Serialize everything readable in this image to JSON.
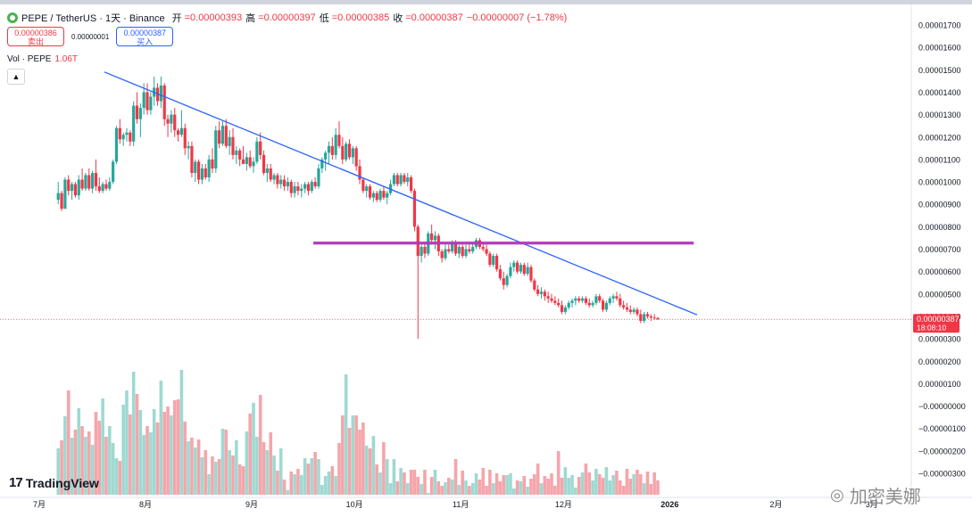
{
  "header": {
    "symbol_title": "PEPE / TetherUS · 1天 · Binance",
    "open_label": "开",
    "open_value": "=0.00000393",
    "high_label": "高",
    "high_value": "=0.00000397",
    "low_label": "低",
    "low_value": "=0.00000385",
    "close_label": "收",
    "close_value": "=0.00000387",
    "change": "−0.00000007 (−1.78%)"
  },
  "trade": {
    "sell_price": "0.00000386",
    "sell_label": "卖出",
    "spread": "0.00000001",
    "buy_price": "0.00000387",
    "buy_label": "买入"
  },
  "volume_legend": {
    "label": "Vol · PEPE",
    "value": "1.06T"
  },
  "collapse_icon": "chevron-up-icon",
  "branding": {
    "name": "TradingView",
    "icon": "tradingview-logo-icon"
  },
  "watermark": {
    "text": "加密美娜",
    "icon": "wechat-icon"
  },
  "chart_data": {
    "type": "candlestick",
    "title": "PEPE / TetherUS · 1天 · Binance",
    "x_tick_labels": [
      "7月",
      "8月",
      "9月",
      "10月",
      "11月",
      "12月",
      "2026",
      "2月",
      "3月"
    ],
    "x_tick_dates": [
      "2025-07-01",
      "2025-08-01",
      "2025-09-01",
      "2025-10-01",
      "2025-11-01",
      "2025-12-01",
      "2026-01-01",
      "2026-02-01",
      "2026-03-01"
    ],
    "y_tick_labels": [
      "0.00001700",
      "0.00001600",
      "0.00001500",
      "0.00001400",
      "0.00001300",
      "0.00001200",
      "0.00001100",
      "0.00001000",
      "0.00000900",
      "0.00000800",
      "0.00000700",
      "0.00000600",
      "0.00000500",
      "0.00000400",
      "0.00000300",
      "0.00000200",
      "0.00000100",
      "−0.00000000",
      "−0.00000100",
      "−0.00000200",
      "−0.00000300"
    ],
    "price_ylim": [
      3e-06,
      1.7e-05
    ],
    "last_price": {
      "value": "0.00000387",
      "countdown": "18:08:10",
      "color": "#f23645"
    },
    "colors": {
      "up": "#26a69a",
      "down": "#f23645",
      "trendline": "#2962ff",
      "resistance": "#9c27b0"
    },
    "trendline": {
      "start": {
        "date": "2025-07-20",
        "price": 1.49e-05
      },
      "end": {
        "date": "2026-01-09",
        "price": 4.07e-06
      }
    },
    "resistance_band": {
      "start_date": "2025-09-19",
      "end_date": "2026-01-08",
      "price": 7.27e-06
    },
    "candles_ohlc": [
      [
        9.2e-06,
        1e-05,
        9e-06,
        9.5e-06
      ],
      [
        9.5e-06,
        9.6e-06,
        8.7e-06,
        8.8e-06
      ],
      [
        8.8e-06,
        1.02e-05,
        8.8e-06,
        1.01e-05
      ],
      [
        1.01e-05,
        1.03e-05,
        9.4e-06,
        9.6e-06
      ],
      [
        9.6e-06,
        1e-05,
        9.2e-06,
        9.9e-06
      ],
      [
        9.9e-06,
        1e-05,
        9.3e-06,
        9.4e-06
      ],
      [
        9.4e-06,
        1.03e-05,
        9.2e-06,
        1.01e-05
      ],
      [
        1.01e-05,
        1.06e-05,
        9.6e-06,
        9.7e-06
      ],
      [
        9.7e-06,
        1.04e-05,
        9.6e-06,
        1.03e-05
      ],
      [
        1.03e-05,
        1.06e-05,
        9.6e-06,
        9.7e-06
      ],
      [
        9.7e-06,
        1.05e-05,
        9.5e-06,
        1.04e-05
      ],
      [
        1.04e-05,
        1.1e-05,
        9.6e-06,
        9.8e-06
      ],
      [
        9.8e-06,
        1.02e-05,
        9.5e-06,
        9.6e-06
      ],
      [
        9.6e-06,
        1e-05,
        9.5e-06,
        9.9e-06
      ],
      [
        9.9e-06,
        1.01e-05,
        9.6e-06,
        9.7e-06
      ],
      [
        9.7e-06,
        1.02e-05,
        9.6e-06,
        1e-05
      ],
      [
        1e-05,
        1.1e-05,
        9.9e-06,
        1.09e-05
      ],
      [
        1.09e-05,
        1.25e-05,
        1.08e-05,
        1.24e-05
      ],
      [
        1.24e-05,
        1.28e-05,
        1.17e-05,
        1.19e-05
      ],
      [
        1.19e-05,
        1.22e-05,
        1.16e-05,
        1.21e-05
      ],
      [
        1.21e-05,
        1.24e-05,
        1.18e-05,
        1.22e-05
      ],
      [
        1.22e-05,
        1.23e-05,
        1.16e-05,
        1.18e-05
      ],
      [
        1.18e-05,
        1.36e-05,
        1.16e-05,
        1.34e-05
      ],
      [
        1.34e-05,
        1.4e-05,
        1.26e-05,
        1.28e-05
      ],
      [
        1.28e-05,
        1.35e-05,
        1.2e-05,
        1.33e-05
      ],
      [
        1.33e-05,
        1.44e-05,
        1.3e-05,
        1.4e-05
      ],
      [
        1.4e-05,
        1.44e-05,
        1.3e-05,
        1.32e-05
      ],
      [
        1.32e-05,
        1.4e-05,
        1.3e-05,
        1.38e-05
      ],
      [
        1.38e-05,
        1.47e-05,
        1.34e-05,
        1.42e-05
      ],
      [
        1.42e-05,
        1.44e-05,
        1.34e-05,
        1.36e-05
      ],
      [
        1.36e-05,
        1.47e-05,
        1.33e-05,
        1.43e-05
      ],
      [
        1.43e-05,
        1.44e-05,
        1.25e-05,
        1.28e-05
      ],
      [
        1.28e-05,
        1.3e-05,
        1.2e-05,
        1.26e-05
      ],
      [
        1.26e-05,
        1.32e-05,
        1.22e-05,
        1.3e-05
      ],
      [
        1.3e-05,
        1.33e-05,
        1.2e-05,
        1.23e-05
      ],
      [
        1.23e-05,
        1.24e-05,
        1.18e-05,
        1.21e-05
      ],
      [
        1.21e-05,
        1.32e-05,
        1.2e-05,
        1.24e-05
      ],
      [
        1.24e-05,
        1.26e-05,
        1.12e-05,
        1.15e-05
      ],
      [
        1.15e-05,
        1.18e-05,
        1.1e-05,
        1.16e-05
      ],
      [
        1.16e-05,
        1.18e-05,
        1.02e-05,
        1.04e-05
      ],
      [
        1.04e-05,
        1.1e-05,
        1e-05,
        1.09e-05
      ],
      [
        1.09e-05,
        1.1e-05,
        9.9e-06,
        1.01e-05
      ],
      [
        1.01e-05,
        1.08e-05,
        9.9e-06,
        1.06e-05
      ],
      [
        1.06e-05,
        1.08e-05,
        1.01e-05,
        1.02e-05
      ],
      [
        1.02e-05,
        1.12e-05,
        1e-05,
        1.1e-05
      ],
      [
        1.1e-05,
        1.15e-05,
        1.04e-05,
        1.06e-05
      ],
      [
        1.06e-05,
        1.25e-05,
        1.04e-05,
        1.23e-05
      ],
      [
        1.23e-05,
        1.27e-05,
        1.15e-05,
        1.17e-05
      ],
      [
        1.17e-05,
        1.27e-05,
        1.16e-05,
        1.25e-05
      ],
      [
        1.25e-05,
        1.28e-05,
        1.15e-05,
        1.16e-05
      ],
      [
        1.16e-05,
        1.23e-05,
        1.12e-05,
        1.2e-05
      ],
      [
        1.2e-05,
        1.24e-05,
        1.1e-05,
        1.12e-05
      ],
      [
        1.12e-05,
        1.16e-05,
        1.08e-05,
        1.14e-05
      ],
      [
        1.14e-05,
        1.15e-05,
        1.07e-05,
        1.1e-05
      ],
      [
        1.1e-05,
        1.16e-05,
        1.08e-05,
        1.08e-05
      ],
      [
        1.08e-05,
        1.13e-05,
        1.05e-05,
        1.11e-05
      ],
      [
        1.11e-05,
        1.14e-05,
        1.06e-05,
        1.07e-05
      ],
      [
        1.07e-05,
        1.11e-05,
        1.04e-05,
        1.09e-05
      ],
      [
        1.09e-05,
        1.2e-05,
        1.08e-05,
        1.18e-05
      ],
      [
        1.18e-05,
        1.22e-05,
        1.1e-05,
        1.12e-05
      ],
      [
        1.12e-05,
        1.14e-05,
        1.03e-05,
        1.04e-05
      ],
      [
        1.04e-05,
        1.08e-05,
        1e-05,
        1.06e-05
      ],
      [
        1.06e-05,
        1.08e-05,
        1e-05,
        1.01e-05
      ],
      [
        1.01e-05,
        1.04e-05,
        9.9e-06,
        1.03e-05
      ],
      [
        1.03e-05,
        1.04e-05,
        9.7e-06,
        9.9e-06
      ],
      [
        9.9e-06,
        1.03e-05,
        9.7e-06,
        1.01e-05
      ],
      [
        1.01e-05,
        1.03e-05,
        9.6e-06,
        9.8e-06
      ],
      [
        9.8e-06,
        1.02e-05,
        9.6e-06,
        1e-05
      ],
      [
        1e-05,
        1.01e-05,
        9.3e-06,
        9.5e-06
      ],
      [
        9.5e-06,
        1e-05,
        9.3e-06,
        9.8e-06
      ],
      [
        9.8e-06,
        1e-05,
        9.4e-06,
        9.6e-06
      ],
      [
        9.6e-06,
        9.9e-06,
        9.3e-06,
        9.7e-06
      ],
      [
        9.7e-06,
        1e-05,
        9.5e-06,
        9.9e-06
      ],
      [
        9.9e-06,
        1e-05,
        9.4e-06,
        9.6e-06
      ],
      [
        9.6e-06,
        1.01e-05,
        9.5e-06,
        1e-05
      ],
      [
        1e-05,
        1.02e-05,
        9.7e-06,
        9.8e-06
      ],
      [
        9.8e-06,
        1.08e-05,
        9.7e-06,
        1.06e-05
      ],
      [
        1.06e-05,
        1.11e-05,
        1.04e-05,
        1.1e-05
      ],
      [
        1.1e-05,
        1.14e-05,
        1.05e-05,
        1.13e-05
      ],
      [
        1.13e-05,
        1.18e-05,
        1.08e-05,
        1.16e-05
      ],
      [
        1.16e-05,
        1.2e-05,
        1.1e-05,
        1.12e-05
      ],
      [
        1.12e-05,
        1.24e-05,
        1.1e-05,
        1.21e-05
      ],
      [
        1.21e-05,
        1.27e-05,
        1.15e-05,
        1.16e-05
      ],
      [
        1.16e-05,
        1.2e-05,
        1.08e-05,
        1.1e-05
      ],
      [
        1.1e-05,
        1.18e-05,
        1.09e-05,
        1.17e-05
      ],
      [
        1.17e-05,
        1.19e-05,
        1.1e-05,
        1.11e-05
      ],
      [
        1.11e-05,
        1.16e-05,
        1.08e-05,
        1.15e-05
      ],
      [
        1.15e-05,
        1.16e-05,
        1.05e-05,
        1.07e-05
      ],
      [
        1.07e-05,
        1.1e-05,
        9.9e-06,
        1.01e-05
      ],
      [
        1.01e-05,
        1.02e-05,
        9.5e-06,
        9.6e-06
      ],
      [
        9.6e-06,
        9.9e-06,
        9.3e-06,
        9.8e-06
      ],
      [
        9.8e-06,
        9.9e-06,
        9.2e-06,
        9.3e-06
      ],
      [
        9.3e-06,
        9.6e-06,
        9.1e-06,
        9.5e-06
      ],
      [
        9.5e-06,
        9.6e-06,
        9.1e-06,
        9.2e-06
      ],
      [
        9.2e-06,
        9.7e-06,
        9.1e-06,
        9.6e-06
      ],
      [
        9.6e-06,
        9.8e-06,
        9.2e-06,
        9.3e-06
      ],
      [
        9.3e-06,
        9.6e-06,
        9e-06,
        9.5e-06
      ],
      [
        9.5e-06,
        1.01e-05,
        9.4e-06,
        9.9e-06
      ],
      [
        9.9e-06,
        1.04e-05,
        9.8e-06,
        1.03e-05
      ],
      [
        1.03e-05,
        1.04e-05,
        9.8e-06,
        9.9e-06
      ],
      [
        9.9e-06,
        1.04e-05,
        9.8e-06,
        1.03e-05
      ],
      [
        1.03e-05,
        1.04e-05,
        9.9e-06,
        1e-05
      ],
      [
        1e-05,
        1.04e-05,
        9.8e-06,
        1.02e-05
      ],
      [
        1.02e-05,
        1.03e-05,
        9.5e-06,
        9.6e-06
      ],
      [
        9.6e-06,
        9.7e-06,
        7.8e-06,
        8e-06
      ],
      [
        8e-06,
        8.1e-06,
        3e-06,
        6.7e-06
      ],
      [
        6.7e-06,
        7.2e-06,
        6.4e-06,
        7.1e-06
      ],
      [
        7.1e-06,
        7.3e-06,
        6.6e-06,
        6.8e-06
      ],
      [
        6.8e-06,
        7.8e-06,
        6.7e-06,
        7.7e-06
      ],
      [
        7.7e-06,
        8.1e-06,
        7.2e-06,
        7.4e-06
      ],
      [
        7.4e-06,
        7.8e-06,
        7e-06,
        7.6e-06
      ],
      [
        7.6e-06,
        7.7e-06,
        6.7e-06,
        6.9e-06
      ],
      [
        6.9e-06,
        7e-06,
        6.4e-06,
        6.6e-06
      ],
      [
        6.6e-06,
        7.2e-06,
        6.5e-06,
        7e-06
      ],
      [
        7e-06,
        7.2e-06,
        6.8e-06,
        6.9e-06
      ],
      [
        6.9e-06,
        7.4e-06,
        6.8e-06,
        7.3e-06
      ],
      [
        7.3e-06,
        7.4e-06,
        6.7e-06,
        6.8e-06
      ],
      [
        6.8e-06,
        7.2e-06,
        6.6e-06,
        7.1e-06
      ],
      [
        7.1e-06,
        7.2e-06,
        6.6e-06,
        6.7e-06
      ],
      [
        6.7e-06,
        7.2e-06,
        6.6e-06,
        7e-06
      ],
      [
        7e-06,
        7.2e-06,
        6.8e-06,
        6.9e-06
      ],
      [
        6.9e-06,
        7.3e-06,
        6.8e-06,
        7.1e-06
      ],
      [
        7.1e-06,
        7.5e-06,
        7e-06,
        7.4e-06
      ],
      [
        7.4e-06,
        7.5e-06,
        7e-06,
        7.1e-06
      ],
      [
        7.1e-06,
        7.3e-06,
        6.9e-06,
        7e-06
      ],
      [
        7e-06,
        7.2e-06,
        6.7e-06,
        6.8e-06
      ],
      [
        6.8e-06,
        6.9e-06,
        6.2e-06,
        6.3e-06
      ],
      [
        6.3e-06,
        6.8e-06,
        6.2e-06,
        6.7e-06
      ],
      [
        6.7e-06,
        6.8e-06,
        6e-06,
        6.1e-06
      ],
      [
        6.1e-06,
        6.3e-06,
        5.6e-06,
        5.7e-06
      ],
      [
        5.7e-06,
        6e-06,
        5.2e-06,
        5.4e-06
      ],
      [
        5.4e-06,
        5.9e-06,
        5.3e-06,
        5.8e-06
      ],
      [
        5.8e-06,
        6.4e-06,
        5.7e-06,
        6.2e-06
      ],
      [
        6.2e-06,
        6.5e-06,
        6e-06,
        6.4e-06
      ],
      [
        6.4e-06,
        6.5e-06,
        5.9e-06,
        6e-06
      ],
      [
        6e-06,
        6.4e-06,
        5.9e-06,
        6.3e-06
      ],
      [
        6.3e-06,
        6.4e-06,
        5.8e-06,
        5.9e-06
      ],
      [
        5.9e-06,
        6.4e-06,
        5.8e-06,
        6.2e-06
      ],
      [
        6.2e-06,
        6.3e-06,
        5.5e-06,
        5.6e-06
      ],
      [
        5.6e-06,
        5.7e-06,
        5.1e-06,
        5.2e-06
      ],
      [
        5.2e-06,
        5.4e-06,
        4.9e-06,
        5e-06
      ],
      [
        5e-06,
        5.3e-06,
        4.8e-06,
        5.1e-06
      ],
      [
        5.1e-06,
        5.2e-06,
        4.7e-06,
        4.9e-06
      ],
      [
        4.9e-06,
        5.1e-06,
        4.6e-06,
        4.8e-06
      ],
      [
        4.8e-06,
        5e-06,
        4.6e-06,
        4.7e-06
      ],
      [
        4.7e-06,
        4.9e-06,
        4.5e-06,
        4.6e-06
      ],
      [
        4.6e-06,
        4.8e-06,
        4.4e-06,
        4.5e-06
      ],
      [
        4.5e-06,
        4.7e-06,
        4.1e-06,
        4.2e-06
      ],
      [
        4.2e-06,
        4.5e-06,
        4.1e-06,
        4.4e-06
      ],
      [
        4.4e-06,
        4.7e-06,
        4.3e-06,
        4.6e-06
      ],
      [
        4.6e-06,
        4.8e-06,
        4.4e-06,
        4.7e-06
      ],
      [
        4.7e-06,
        4.9e-06,
        4.5e-06,
        4.8e-06
      ],
      [
        4.8e-06,
        4.9e-06,
        4.6e-06,
        4.7e-06
      ],
      [
        4.7e-06,
        4.9e-06,
        4.6e-06,
        4.8e-06
      ],
      [
        4.8e-06,
        4.9e-06,
        4.5e-06,
        4.6e-06
      ],
      [
        4.6e-06,
        4.8e-06,
        4.4e-06,
        4.5e-06
      ],
      [
        4.5e-06,
        4.7e-06,
        4.4e-06,
        4.6e-06
      ],
      [
        4.6e-06,
        5e-06,
        4.5e-06,
        4.9e-06
      ],
      [
        4.9e-06,
        5e-06,
        4.6e-06,
        4.7e-06
      ],
      [
        4.7e-06,
        4.8e-06,
        4.2e-06,
        4.3e-06
      ],
      [
        4.3e-06,
        4.7e-06,
        4.2e-06,
        4.6e-06
      ],
      [
        4.6e-06,
        4.9e-06,
        4.5e-06,
        4.8e-06
      ],
      [
        4.8e-06,
        5e-06,
        4.6e-06,
        4.9e-06
      ],
      [
        4.9e-06,
        5.1e-06,
        4.7e-06,
        4.8e-06
      ],
      [
        4.8e-06,
        5e-06,
        4.4e-06,
        4.5e-06
      ],
      [
        4.5e-06,
        4.7e-06,
        4.3e-06,
        4.4e-06
      ],
      [
        4.4e-06,
        4.6e-06,
        4.2e-06,
        4.3e-06
      ],
      [
        4.3e-06,
        4.5e-06,
        4.1e-06,
        4.2e-06
      ],
      [
        4.2e-06,
        4.4e-06,
        4.1e-06,
        4.3e-06
      ],
      [
        4.3e-06,
        4.4e-06,
        4e-06,
        4.1e-06
      ],
      [
        4.1e-06,
        4.3e-06,
        3.7e-06,
        3.8e-06
      ],
      [
        3.8e-06,
        4.2e-06,
        3.7e-06,
        4.1e-06
      ],
      [
        4.1e-06,
        4.2e-06,
        3.9e-06,
        4e-06
      ],
      [
        4e-06,
        4.1e-06,
        3.8e-06,
        3.95e-06
      ],
      [
        3.95e-06,
        4.1e-06,
        3.85e-06,
        3.93e-06
      ],
      [
        3.93e-06,
        3.97e-06,
        3.85e-06,
        3.87e-06
      ]
    ],
    "volumes_billion_usdt": [
      52,
      61,
      88,
      117,
      64,
      73,
      97,
      77,
      65,
      71,
      56,
      93,
      83,
      108,
      65,
      77,
      58,
      41,
      38,
      101,
      117,
      90,
      138,
      113,
      95,
      67,
      77,
      70,
      96,
      81,
      128,
      93,
      99,
      89,
      106,
      107,
      140,
      82,
      60,
      64,
      53,
      62,
      42,
      50,
      23,
      43,
      37,
      40,
      74,
      73,
      50,
      44,
      61,
      34,
      32,
      71,
      91,
      103,
      65,
      112,
      59,
      50,
      70,
      44,
      27,
      52,
      17,
      5,
      26,
      23,
      29,
      22,
      41,
      35,
      41,
      48,
      40,
      11,
      21,
      26,
      32,
      21,
      58,
      89,
      135,
      75,
      89,
      89,
      73,
      81,
      55,
      52,
      66,
      34,
      25,
      59,
      40,
      13,
      40,
      15,
      30,
      25,
      13,
      28,
      28,
      20,
      12,
      28,
      2,
      20,
      28,
      15,
      10,
      14,
      19,
      17,
      40,
      11,
      27,
      16,
      10,
      13,
      24,
      17,
      30,
      10,
      28,
      13,
      24,
      15,
      22,
      22,
      24,
      7,
      16,
      15,
      21,
      9,
      18,
      23,
      35,
      13,
      21,
      18,
      24,
      10,
      49,
      19,
      31,
      19,
      22,
      8,
      20,
      25,
      35,
      25,
      16,
      29,
      23,
      19,
      31,
      16,
      22,
      27,
      16,
      10,
      29,
      18,
      23,
      28,
      23,
      13,
      26,
      12,
      25,
      16,
      22,
      25,
      8,
      25
    ]
  }
}
